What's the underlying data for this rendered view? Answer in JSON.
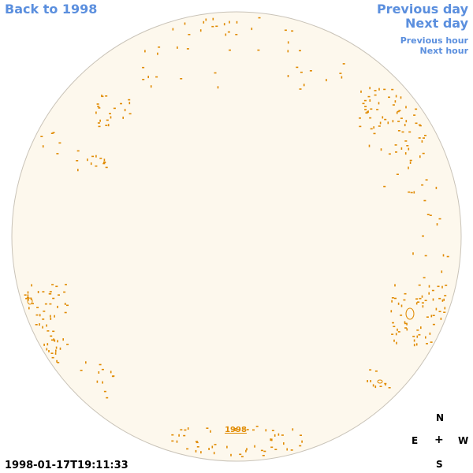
{
  "nav": {
    "back": "Back to 1998",
    "previous_day": "Previous day",
    "next_day": "Next day",
    "previous_hour": "Previous hour",
    "next_hour": "Next hour"
  },
  "disk": {
    "label": "1998",
    "fill_color": "#fdf8ed",
    "edge_color": "#c9c3b8",
    "feature_color": "#e08a00"
  },
  "timestamp": "1998-01-17T19:11:33",
  "compass": {
    "north": "N",
    "east": "E",
    "center": "+",
    "west": "W",
    "south": "S"
  }
}
